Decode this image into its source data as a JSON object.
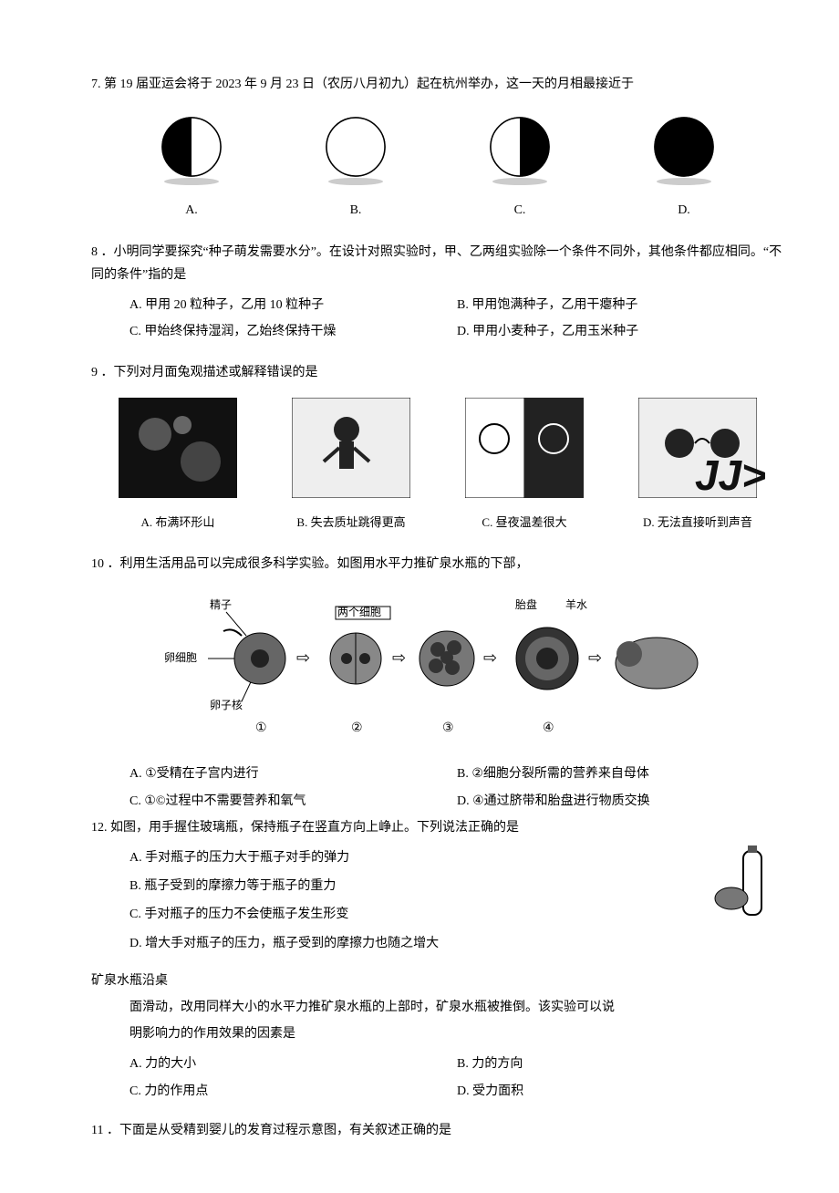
{
  "q7": {
    "num": "7.",
    "stem": "第 19 届亚运会将于 2023 年 9 月 23 日（农历八月初九）起在杭州举办，这一天的月相最接近于",
    "moons": [
      {
        "label": "A.",
        "leftFill": "#000",
        "rightFill": "#fff"
      },
      {
        "label": "B.",
        "leftFill": "#fff",
        "rightFill": "#fff"
      },
      {
        "label": "C.",
        "leftFill": "#fff",
        "rightFill": "#000"
      },
      {
        "label": "D.",
        "leftFill": "#000",
        "rightFill": "#000"
      }
    ]
  },
  "q8": {
    "num": "8",
    "stem": "．小明同学要探究“种子萌发需要水分”。在设计对照实验时，甲、乙两组实验除一个条件不同外，其他条件都应相同。“不同的条件”指的是",
    "opts": {
      "A": "A. 甲用 20 粒种子，乙用 10 粒种子",
      "B": "B. 甲用饱满种子，乙用干瘪种子",
      "C": "C. 甲始终保持湿润，乙始终保持干燥",
      "D": "D. 甲用小麦种子，乙用玉米种子"
    }
  },
  "q9": {
    "num": "9",
    "stem": "．下列对月面兔观描述或解释错误的是",
    "opts": {
      "A": "A. 布满环形山",
      "B": "B. 失去质址跳得更高",
      "C": "C. 昼夜温差很大",
      "D": "D. 无法直接听到声音"
    }
  },
  "q10": {
    "num": "10",
    "stem": "．利用生活用品可以完成很多科学实验。如图用水平力推矿泉水瓶的下部，",
    "cont1": "矿泉水瓶沿桌",
    "cont2": "面滑动，改用同样大小的水平力推矿泉水瓶的上部时，矿泉水瓶被推倒。该实验可以说",
    "cont3": "明影响力的作用效果的因素是",
    "opts": {
      "A": "A. 力的大小",
      "B": "B. 力的方向",
      "C": "C. 力的作用点",
      "D": "D. 受力面积"
    }
  },
  "q11": {
    "num": "11",
    "stem": "．下面是从受精到婴儿的发育过程示意图，有关叙述正确的是",
    "labels": {
      "sperm": "精子",
      "egg": "卵细胞",
      "nucleus": "卵子核",
      "twocell": "两个细胞",
      "placenta": "胎盘",
      "amniotic": "羊水",
      "n1": "①",
      "n2": "②",
      "n3": "③",
      "n4": "④"
    },
    "opts": {
      "A": "A. ①受精在子宫内进行",
      "B": "B. ②细胞分裂所需的营养来自母体",
      "C": "C. ①©过程中不需要营养和氧气",
      "D": "D. ④通过脐带和胎盘进行物质交换"
    }
  },
  "q12": {
    "num": "12.",
    "stem": "如图，用手握住玻璃瓶，保持瓶子在竖直方向上峥止。下列说法正确的是",
    "opts": {
      "A": "A. 手对瓶子的压力大于瓶子对手的弹力",
      "B": "B. 瓶子受到的摩擦力等于瓶子的重力",
      "C": "C. 手对瓶子的压力不会使瓶子发生形变",
      "D": "D. 增大手对瓶子的压力，瓶子受到的摩擦力也随之增大"
    }
  },
  "watermark": "JJ>",
  "colors": {
    "stroke": "#000000",
    "bg": "#ffffff",
    "shadow": "#cccccc",
    "darkfill": "#333333"
  }
}
